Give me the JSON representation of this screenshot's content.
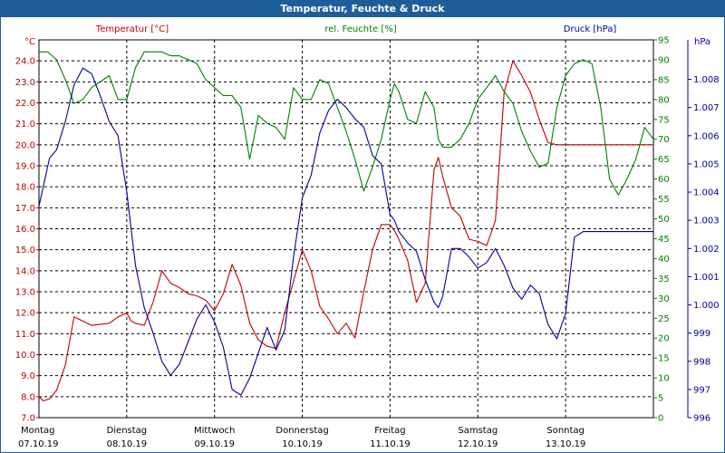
{
  "window": {
    "title": "Temperatur, Feuchte & Druck"
  },
  "chart_data": {
    "type": "line",
    "title": "Temperatur, Feuchte & Druck",
    "grid": true,
    "x_range": [
      0,
      7
    ],
    "x_ticks": [
      {
        "day": "Montag",
        "date": "07.10.19"
      },
      {
        "day": "Dienstag",
        "date": "08.10.19"
      },
      {
        "day": "Mittwoch",
        "date": "09.10.19"
      },
      {
        "day": "Donnerstag",
        "date": "10.10.19"
      },
      {
        "day": "Freitag",
        "date": "11.10.19"
      },
      {
        "day": "Samstag",
        "date": "12.10.19"
      },
      {
        "day": "Sonntag",
        "date": "13.10.19"
      }
    ],
    "axes": {
      "temperature": {
        "label": "Temperatur [°C]",
        "unit": "°C",
        "color": "#c00000",
        "range": [
          7.0,
          25.0
        ],
        "ticks": [
          "7.0",
          "8.0",
          "9.0",
          "10.0",
          "11.0",
          "12.0",
          "13.0",
          "14.0",
          "15.0",
          "16.0",
          "17.0",
          "18.0",
          "19.0",
          "20.0",
          "21.0",
          "22.0",
          "23.0",
          "24.0"
        ]
      },
      "humidity": {
        "label": "rel. Feuchte [%]",
        "unit": "%",
        "color": "#008000",
        "range": [
          0,
          95
        ],
        "ticks": [
          "0",
          "5",
          "10",
          "15",
          "20",
          "25",
          "30",
          "35",
          "40",
          "45",
          "50",
          "55",
          "60",
          "65",
          "70",
          "75",
          "80",
          "85",
          "90",
          "95"
        ]
      },
      "pressure": {
        "label": "Druck [hPa]",
        "unit": "hPa",
        "color": "#000099",
        "range": [
          996,
          1009.4
        ],
        "ticks": [
          "996",
          "997",
          "998",
          "999",
          "1.000",
          "1.001",
          "1.002",
          "1.003",
          "1.004",
          "1.005",
          "1.006",
          "1.007",
          "1.008"
        ]
      }
    },
    "series": [
      {
        "name": "Temperatur [°C]",
        "axis": "temperature",
        "color": "#c00000",
        "x": [
          0,
          0.05,
          0.12,
          0.2,
          0.3,
          0.4,
          0.5,
          0.6,
          0.8,
          0.9,
          1.0,
          1.05,
          1.1,
          1.2,
          1.3,
          1.4,
          1.5,
          1.6,
          1.7,
          1.8,
          1.9,
          2.0,
          2.1,
          2.2,
          2.3,
          2.4,
          2.5,
          2.6,
          2.7,
          2.8,
          2.9,
          3.0,
          3.1,
          3.2,
          3.3,
          3.4,
          3.5,
          3.6,
          3.7,
          3.8,
          3.9,
          4.0,
          4.05,
          4.1,
          4.2,
          4.3,
          4.4,
          4.5,
          4.55,
          4.6,
          4.7,
          4.8,
          4.9,
          5.0,
          5.1,
          5.2,
          5.3,
          5.4,
          5.5,
          5.6,
          5.7,
          5.8,
          5.9,
          6.0,
          6.1,
          6.2,
          6.3,
          6.4,
          6.5,
          6.6,
          6.7,
          6.8,
          6.9,
          7.0
        ],
        "y": [
          8.0,
          7.8,
          7.9,
          8.3,
          9.5,
          11.8,
          11.6,
          11.4,
          11.5,
          11.8,
          12.0,
          11.6,
          11.5,
          11.4,
          12.5,
          14.0,
          13.4,
          13.2,
          12.9,
          12.8,
          12.6,
          12.1,
          12.9,
          14.3,
          13.3,
          11.5,
          10.7,
          10.4,
          10.3,
          12.0,
          13.5,
          15.0,
          14.0,
          12.3,
          11.7,
          11.0,
          11.5,
          10.8,
          13.0,
          15.0,
          16.2,
          16.2,
          15.9,
          15.5,
          14.5,
          12.5,
          13.4,
          18.8,
          19.4,
          18.5,
          17.0,
          16.6,
          15.5,
          15.4,
          15.2,
          16.4,
          22.5,
          24.0,
          23.3,
          22.5,
          21.2,
          20.1,
          20.0,
          20.0,
          20.0,
          20.0,
          20.0,
          20.0,
          20.0,
          20.0,
          20.0,
          20.0,
          20.0,
          20.0
        ]
      },
      {
        "name": "rel. Feuchte [%]",
        "axis": "humidity",
        "color": "#008000",
        "x": [
          0,
          0.1,
          0.2,
          0.3,
          0.4,
          0.5,
          0.6,
          0.8,
          0.9,
          1.0,
          1.1,
          1.2,
          1.3,
          1.4,
          1.5,
          1.6,
          1.7,
          1.8,
          1.9,
          2.0,
          2.1,
          2.2,
          2.3,
          2.4,
          2.5,
          2.6,
          2.7,
          2.8,
          2.9,
          3.0,
          3.1,
          3.2,
          3.3,
          3.4,
          3.5,
          3.6,
          3.7,
          3.8,
          3.9,
          4.0,
          4.05,
          4.1,
          4.2,
          4.3,
          4.4,
          4.5,
          4.55,
          4.6,
          4.7,
          4.8,
          4.9,
          5.0,
          5.1,
          5.2,
          5.3,
          5.4,
          5.5,
          5.6,
          5.7,
          5.8,
          5.9,
          6.0,
          6.1,
          6.2,
          6.3,
          6.4,
          6.5,
          6.6,
          6.7,
          6.8,
          6.9,
          7.0
        ],
        "y": [
          92,
          92,
          90,
          85,
          79,
          80,
          83,
          86,
          80,
          80,
          88,
          92,
          92,
          92,
          91,
          91,
          90,
          89,
          85,
          83,
          81,
          81,
          78,
          65,
          76,
          74,
          73,
          70,
          83,
          80,
          80,
          85,
          84,
          78,
          72,
          65,
          57,
          63,
          70,
          80,
          84,
          82,
          75,
          74,
          82,
          78,
          70,
          68,
          68,
          70,
          74,
          80,
          83,
          86,
          82,
          79,
          72,
          67,
          63,
          64,
          78,
          86,
          89,
          90,
          89,
          78,
          60,
          56,
          60,
          65,
          73,
          70
        ]
      },
      {
        "name": "Druck [hPa]",
        "axis": "pressure",
        "color": "#000099",
        "x": [
          0,
          0.05,
          0.12,
          0.2,
          0.3,
          0.4,
          0.5,
          0.6,
          0.7,
          0.8,
          0.9,
          1.0,
          1.1,
          1.2,
          1.3,
          1.4,
          1.5,
          1.6,
          1.7,
          1.8,
          1.9,
          2.0,
          2.1,
          2.2,
          2.3,
          2.4,
          2.5,
          2.6,
          2.7,
          2.8,
          2.9,
          3.0,
          3.1,
          3.2,
          3.3,
          3.4,
          3.5,
          3.6,
          3.7,
          3.8,
          3.9,
          4.0,
          4.05,
          4.1,
          4.2,
          4.3,
          4.4,
          4.5,
          4.55,
          4.6,
          4.7,
          4.8,
          4.9,
          5.0,
          5.1,
          5.2,
          5.3,
          5.4,
          5.5,
          5.6,
          5.7,
          5.8,
          5.9,
          6.0,
          6.1,
          6.2,
          6.3,
          6.4,
          6.5,
          6.6,
          6.7,
          6.8,
          6.9,
          7.0
        ],
        "y": [
          1003.5,
          1004.2,
          1005.2,
          1005.5,
          1006.5,
          1007.8,
          1008.4,
          1008.2,
          1007.4,
          1006.5,
          1006.0,
          1004.0,
          1001.4,
          999.9,
          999.0,
          998.0,
          997.5,
          997.9,
          998.7,
          999.5,
          1000.0,
          999.4,
          998.5,
          997.0,
          996.8,
          997.4,
          998.3,
          999.2,
          998.4,
          999.1,
          1001.7,
          1003.8,
          1004.6,
          1006.1,
          1006.9,
          1007.3,
          1007.0,
          1006.6,
          1006.3,
          1005.3,
          1005.0,
          1003.2,
          1003.0,
          1002.6,
          1002.2,
          1001.9,
          1000.9,
          1000.1,
          999.9,
          1000.3,
          1002.0,
          1002.0,
          1001.7,
          1001.3,
          1001.5,
          1002.0,
          1001.4,
          1000.6,
          1000.2,
          1000.7,
          1000.4,
          999.3,
          998.8,
          999.7,
          1002.4,
          1002.6,
          1002.6,
          1002.6,
          1002.6,
          1002.6,
          1002.6,
          1002.6,
          1002.6,
          1002.6
        ]
      }
    ]
  }
}
